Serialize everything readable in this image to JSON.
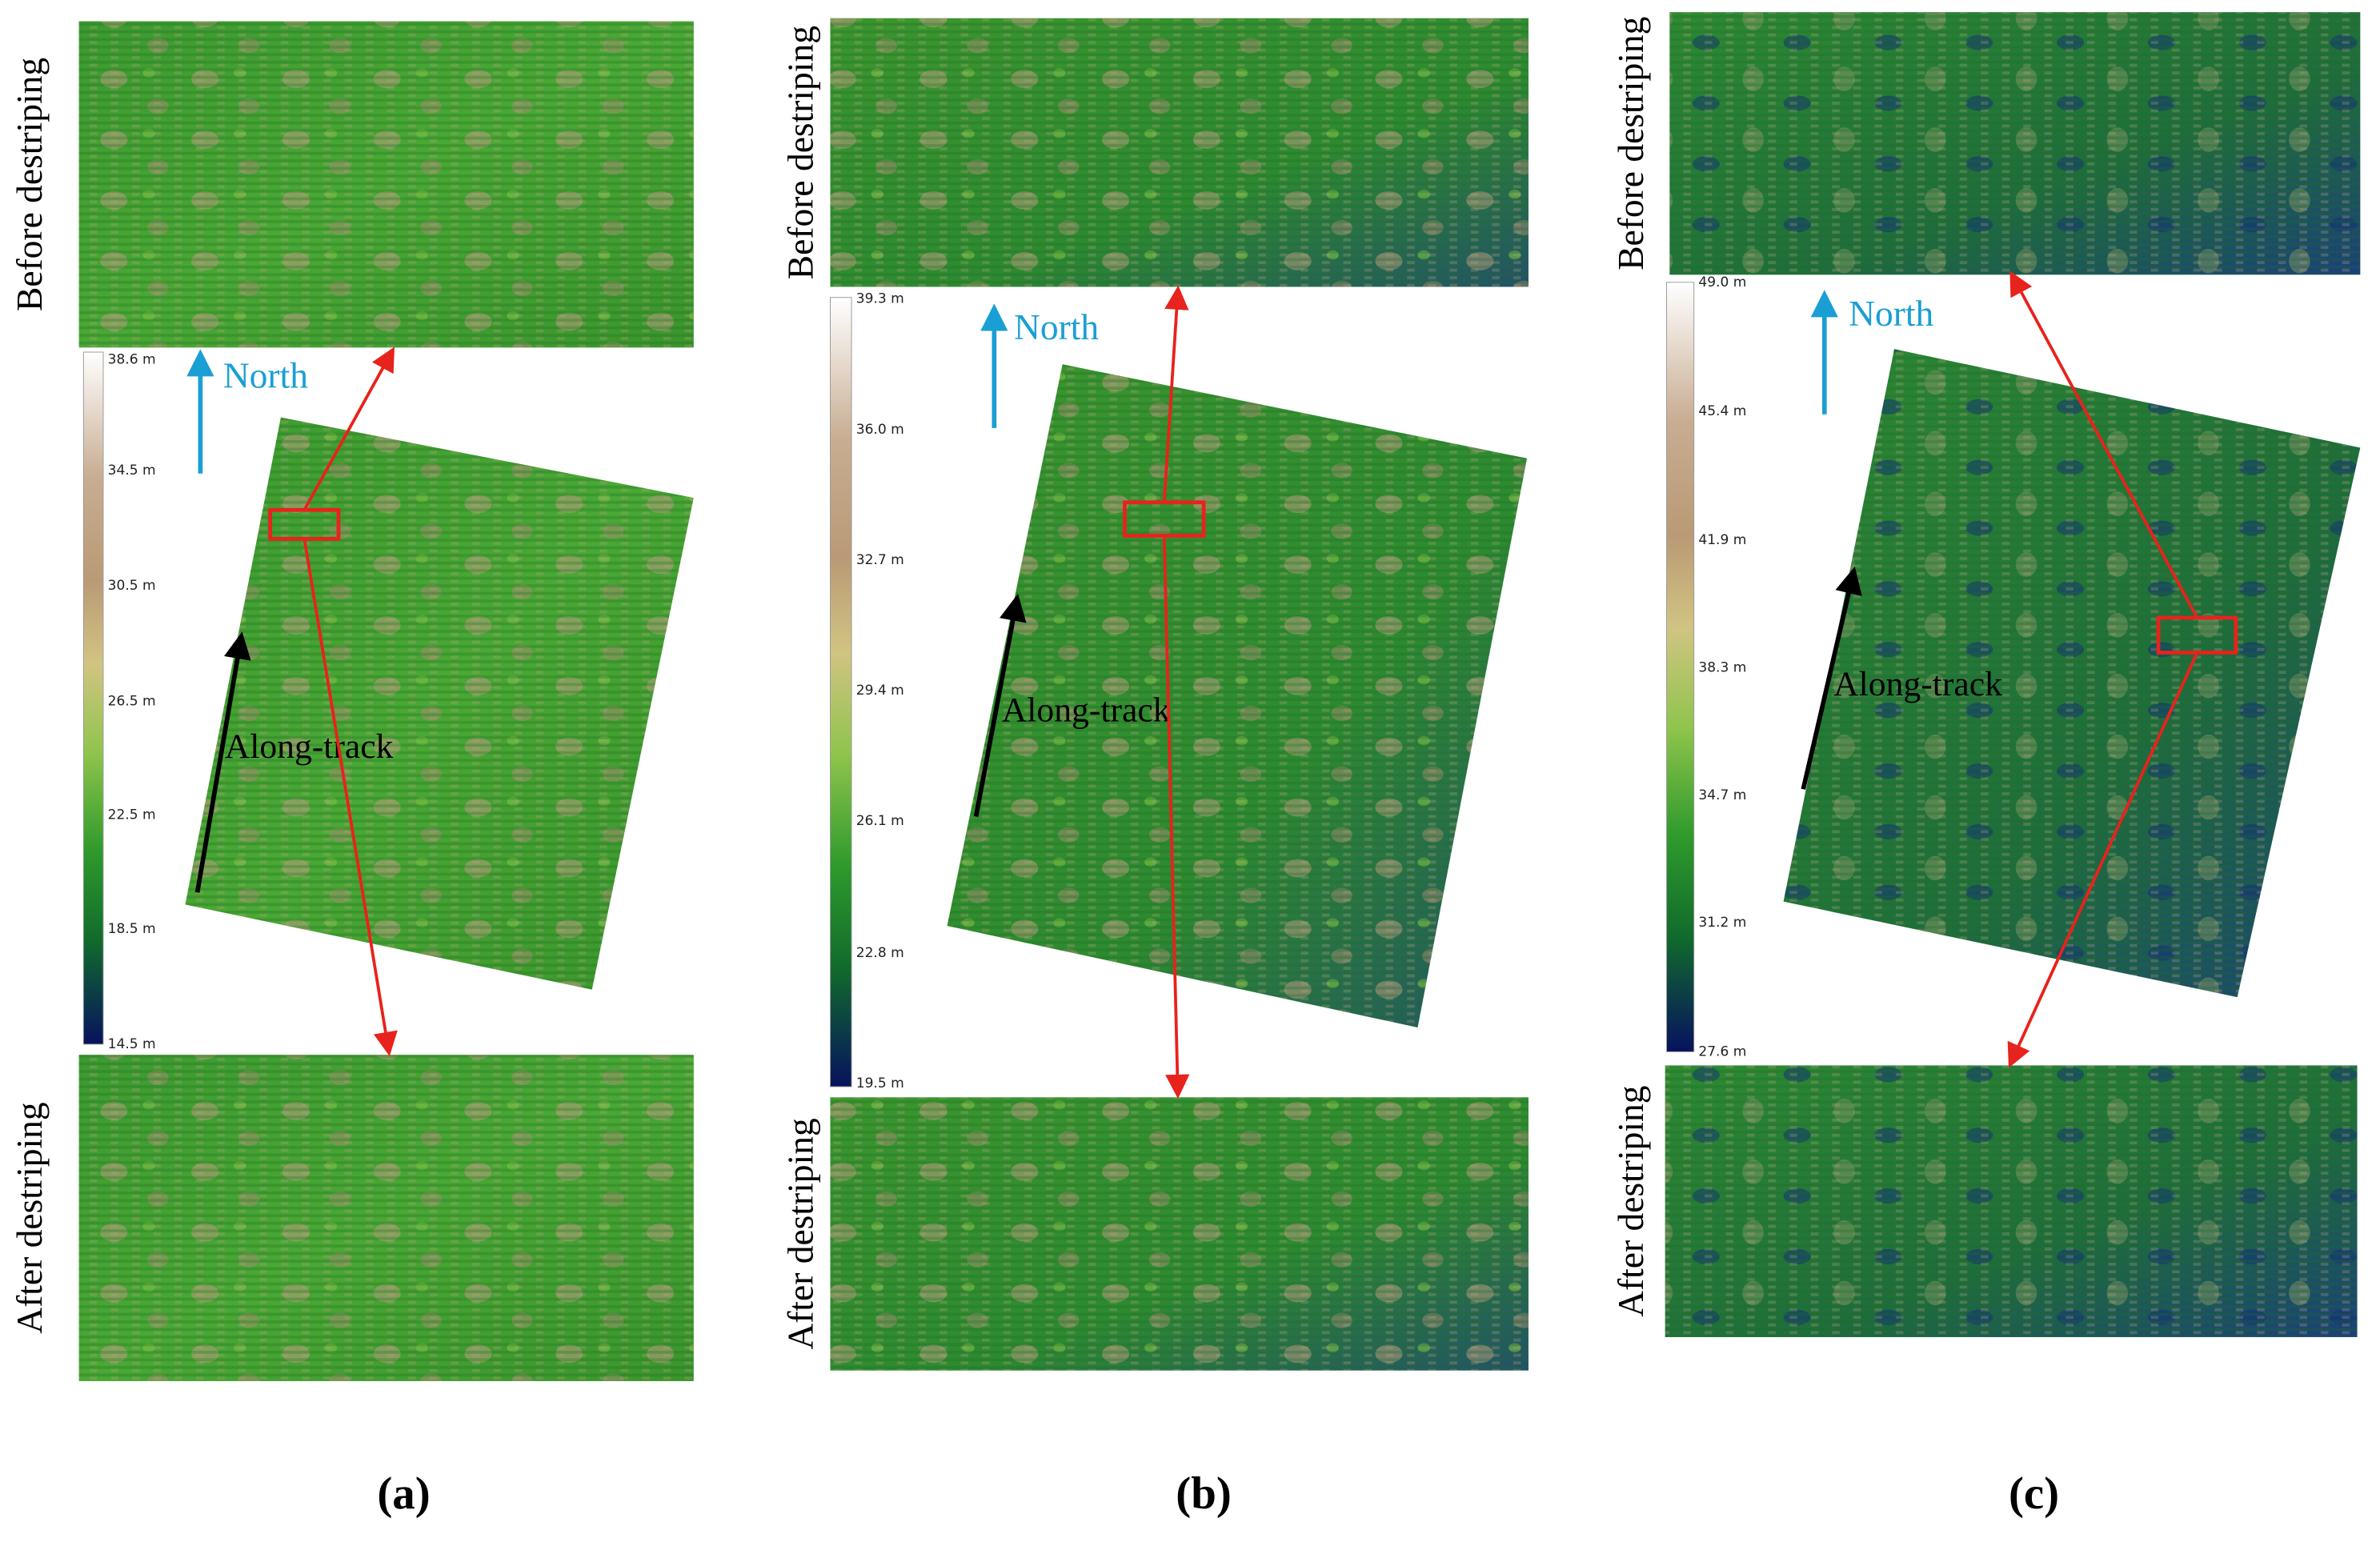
{
  "panels": [
    {
      "label": "(a)",
      "before": "Before destriping",
      "after": "After destriping",
      "north": "North",
      "track": "Along-track",
      "colorbar": [
        "38.6 m",
        "34.5 m",
        "30.5 m",
        "26.5 m",
        "22.5 m",
        "18.5 m",
        "14.5 m"
      ]
    },
    {
      "label": "(b)",
      "before": "Before destriping",
      "after": "After destriping",
      "north": "North",
      "track": "Along-track",
      "colorbar": [
        "39.3 m",
        "36.0 m",
        "32.7 m",
        "29.4 m",
        "26.1 m",
        "22.8 m",
        "19.5 m"
      ]
    },
    {
      "label": "(c)",
      "before": "Before destriping",
      "after": "After destriping",
      "north": "North",
      "track": "Along-track",
      "colorbar": [
        "49.0 m",
        "45.4 m",
        "41.9 m",
        "38.3 m",
        "34.7 m",
        "31.2 m",
        "27.6 m"
      ]
    }
  ]
}
